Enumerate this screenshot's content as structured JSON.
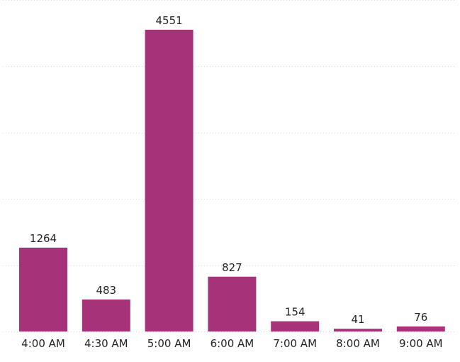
{
  "chart_data": {
    "type": "bar",
    "categories": [
      "4:00 AM",
      "4:30 AM",
      "5:00 AM",
      "6:00 AM",
      "7:00 AM",
      "8:00 AM",
      "9:00 AM"
    ],
    "values": [
      1264,
      483,
      4551,
      827,
      154,
      41,
      76
    ],
    "title": "",
    "xlabel": "",
    "ylabel": "",
    "ylim": [
      0,
      5000
    ],
    "grid": true,
    "data_labels": true,
    "bar_color": "#A6337A"
  }
}
